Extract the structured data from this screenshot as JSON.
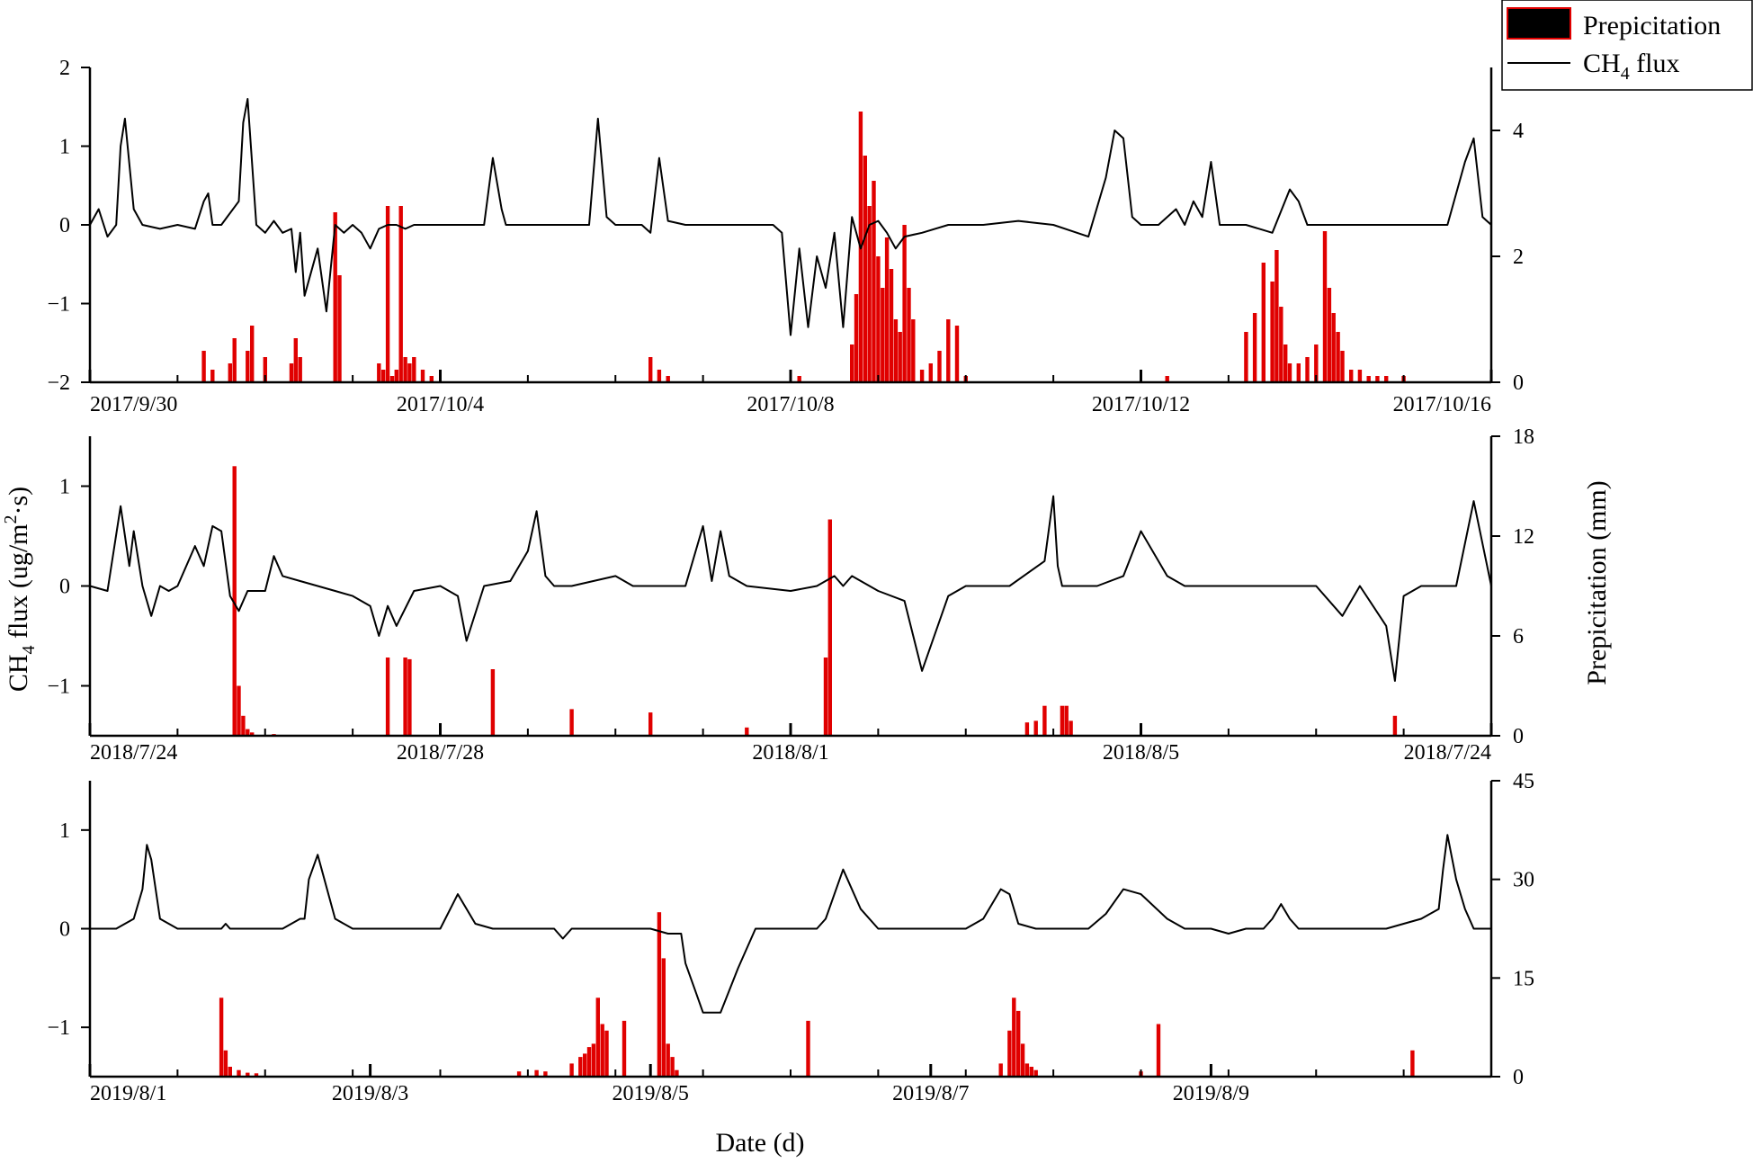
{
  "chart_data": [
    {
      "type": "line",
      "panel": "2017",
      "x_ticks": [
        "2017/9/30",
        "2017/10/4",
        "2017/10/8",
        "2017/10/12",
        "2017/10/16"
      ],
      "left_axis": {
        "ticks": [
          "2",
          "1",
          "0",
          "−1",
          "−2"
        ],
        "ylim": [
          -2,
          2
        ]
      },
      "right_axis": {
        "ticks": [
          "4",
          "2",
          "0"
        ],
        "ylim": [
          0,
          5
        ]
      },
      "series": [
        {
          "name": "CH4 flux",
          "type": "line",
          "axis": "left",
          "color": "#000000",
          "x": [
            0,
            0.1,
            0.2,
            0.3,
            0.35,
            0.4,
            0.5,
            0.6,
            0.8,
            1.0,
            1.2,
            1.3,
            1.35,
            1.4,
            1.5,
            1.7,
            1.75,
            1.8,
            1.9,
            2.0,
            2.1,
            2.2,
            2.3,
            2.35,
            2.4,
            2.45,
            2.6,
            2.7,
            2.8,
            2.9,
            3.0,
            3.1,
            3.2,
            3.3,
            3.4,
            3.5,
            3.6,
            3.7,
            3.9,
            4.2,
            4.5,
            4.6,
            4.7,
            4.75,
            4.8,
            4.9,
            5.0,
            5.2,
            5.5,
            5.7,
            5.8,
            5.9,
            6.0,
            6.2,
            6.3,
            6.4,
            6.5,
            6.6,
            6.8,
            7.0,
            7.5,
            7.8,
            7.9,
            8.0,
            8.1,
            8.2,
            8.3,
            8.4,
            8.5,
            8.6,
            8.7,
            8.8,
            8.9,
            9.0,
            9.1,
            9.2,
            9.3,
            9.5,
            9.8,
            10.2,
            10.6,
            11.0,
            11.4,
            11.6,
            11.7,
            11.8,
            11.9,
            12.0,
            12.2,
            12.4,
            12.5,
            12.6,
            12.7,
            12.8,
            12.9,
            13.0,
            13.2,
            13.5,
            13.7,
            13.8,
            13.9,
            14.0,
            14.2,
            14.5,
            14.8,
            15.0,
            15.2,
            15.5,
            15.7,
            15.8,
            15.9,
            16.0
          ],
          "values": [
            0.0,
            0.2,
            -0.15,
            0.0,
            1.0,
            1.35,
            0.2,
            0.0,
            -0.05,
            0.0,
            -0.05,
            0.3,
            0.4,
            0.0,
            0.0,
            0.3,
            1.3,
            1.6,
            0.0,
            -0.1,
            0.05,
            -0.1,
            -0.05,
            -0.6,
            -0.1,
            -0.9,
            -0.3,
            -1.1,
            0.0,
            -0.1,
            0.0,
            -0.1,
            -0.3,
            -0.05,
            0.0,
            0.0,
            -0.05,
            0.0,
            0.0,
            0.0,
            0.0,
            0.85,
            0.2,
            0.0,
            0.0,
            0.0,
            0.0,
            0.0,
            0.0,
            0.0,
            1.35,
            0.1,
            0.0,
            0.0,
            0.0,
            -0.1,
            0.85,
            0.05,
            0.0,
            0.0,
            0.0,
            0.0,
            -0.1,
            -1.4,
            -0.3,
            -1.3,
            -0.4,
            -0.8,
            -0.1,
            -1.3,
            0.1,
            -0.3,
            0.0,
            0.05,
            -0.1,
            -0.3,
            -0.15,
            -0.1,
            0.0,
            0.0,
            0.05,
            0.0,
            -0.15,
            0.6,
            1.2,
            1.1,
            0.1,
            0.0,
            0.0,
            0.2,
            0.0,
            0.3,
            0.1,
            0.8,
            0.0,
            0.0,
            0.0,
            -0.1,
            0.45,
            0.3,
            0.0,
            0.0,
            0.0,
            0.0,
            0.0,
            0.0,
            0.0,
            0.0,
            0.8,
            1.1,
            0.1,
            0.0
          ]
        },
        {
          "name": "Prepicitation",
          "type": "bar",
          "axis": "right",
          "color": "#e00000",
          "x": [
            1.3,
            1.4,
            1.6,
            1.65,
            1.8,
            1.85,
            2.0,
            2.3,
            2.35,
            2.4,
            2.8,
            2.85,
            3.3,
            3.35,
            3.4,
            3.45,
            3.5,
            3.55,
            3.6,
            3.65,
            3.7,
            3.8,
            3.9,
            6.4,
            6.5,
            6.6,
            8.1,
            8.7,
            8.75,
            8.8,
            8.85,
            8.9,
            8.95,
            9.0,
            9.05,
            9.1,
            9.15,
            9.2,
            9.25,
            9.3,
            9.35,
            9.4,
            9.5,
            9.6,
            9.7,
            9.8,
            9.9,
            10.0,
            12.3,
            13.2,
            13.3,
            13.4,
            13.5,
            13.55,
            13.6,
            13.65,
            13.7,
            13.8,
            13.9,
            14.0,
            14.1,
            14.15,
            14.2,
            14.25,
            14.3,
            14.4,
            14.5,
            14.6,
            14.7,
            14.8,
            15.0
          ],
          "values": [
            0.5,
            0.2,
            0.3,
            0.7,
            0.5,
            0.9,
            0.4,
            0.3,
            0.7,
            0.4,
            2.7,
            1.7,
            0.3,
            0.2,
            2.8,
            0.1,
            0.2,
            2.8,
            0.4,
            0.3,
            0.4,
            0.2,
            0.1,
            0.4,
            0.2,
            0.1,
            0.1,
            0.6,
            1.4,
            4.3,
            3.6,
            2.8,
            3.2,
            2.0,
            1.5,
            2.3,
            1.8,
            1.0,
            0.8,
            2.5,
            1.5,
            1.0,
            0.2,
            0.3,
            0.5,
            1.0,
            0.9,
            0.1,
            0.1,
            0.8,
            1.1,
            1.9,
            1.6,
            2.1,
            1.2,
            0.6,
            0.3,
            0.3,
            0.4,
            0.6,
            2.4,
            1.5,
            1.1,
            0.8,
            0.5,
            0.2,
            0.2,
            0.1,
            0.1,
            0.1,
            0.1
          ]
        }
      ]
    },
    {
      "type": "line",
      "panel": "2018",
      "x_ticks": [
        "2018/7/24",
        "2018/7/28",
        "2018/8/1",
        "2018/8/5",
        "2018/7/24"
      ],
      "left_axis": {
        "ticks": [
          "1",
          "0",
          "−1"
        ],
        "ylim": [
          -1.5,
          1.5
        ]
      },
      "right_axis": {
        "ticks": [
          "18",
          "12",
          "6",
          "0"
        ],
        "ylim": [
          0,
          18
        ]
      },
      "series": [
        {
          "name": "CH4 flux",
          "type": "line",
          "axis": "left",
          "color": "#000000",
          "x": [
            0,
            0.2,
            0.35,
            0.45,
            0.5,
            0.6,
            0.7,
            0.8,
            0.9,
            1.0,
            1.2,
            1.3,
            1.4,
            1.5,
            1.6,
            1.7,
            1.8,
            2.0,
            2.1,
            2.2,
            2.4,
            2.6,
            2.8,
            3.0,
            3.2,
            3.3,
            3.4,
            3.5,
            3.7,
            4.0,
            4.2,
            4.3,
            4.5,
            4.8,
            5.0,
            5.1,
            5.2,
            5.3,
            5.5,
            6.0,
            6.2,
            6.5,
            6.8,
            7.0,
            7.1,
            7.2,
            7.3,
            7.5,
            8.0,
            8.3,
            8.5,
            8.6,
            8.7,
            9.0,
            9.3,
            9.5,
            9.8,
            10.0,
            10.1,
            10.15,
            10.2,
            10.3,
            10.5,
            10.9,
            11.0,
            11.05,
            11.1,
            11.3,
            11.5,
            11.8,
            12.0,
            12.3,
            12.5,
            13.0,
            13.5,
            14.0,
            14.3,
            14.5,
            14.8,
            14.9,
            15.0,
            15.2,
            15.4,
            15.6,
            15.8,
            16.0
          ],
          "values": [
            0.0,
            -0.05,
            0.8,
            0.2,
            0.55,
            0.0,
            -0.3,
            0.0,
            -0.05,
            0.0,
            0.4,
            0.2,
            0.6,
            0.55,
            -0.1,
            -0.25,
            -0.05,
            -0.05,
            0.3,
            0.1,
            0.05,
            0.0,
            -0.05,
            -0.1,
            -0.2,
            -0.5,
            -0.2,
            -0.4,
            -0.05,
            0.0,
            -0.1,
            -0.55,
            0.0,
            0.05,
            0.35,
            0.75,
            0.1,
            0.0,
            0.0,
            0.1,
            0.0,
            0.0,
            0.0,
            0.6,
            0.05,
            0.55,
            0.1,
            0.0,
            -0.05,
            0.0,
            0.1,
            0.0,
            0.1,
            -0.05,
            -0.15,
            -0.85,
            -0.1,
            0.0,
            0.0,
            0.0,
            0.0,
            0.0,
            0.0,
            0.25,
            0.9,
            0.2,
            0.0,
            0.0,
            0.0,
            0.1,
            0.55,
            0.1,
            0.0,
            0.0,
            0.0,
            0.0,
            -0.3,
            0.0,
            -0.4,
            -0.95,
            -0.1,
            0.0,
            0.0,
            0.0,
            0.85,
            0.0
          ]
        },
        {
          "name": "Prepicitation",
          "type": "bar",
          "axis": "right",
          "color": "#e00000",
          "x": [
            1.65,
            1.7,
            1.75,
            1.8,
            1.85,
            2.1,
            3.4,
            3.6,
            3.65,
            4.6,
            5.5,
            6.4,
            7.5,
            8.4,
            8.45,
            10.7,
            10.8,
            10.9,
            11.1,
            11.15,
            11.2,
            14.9
          ],
          "values": [
            16.2,
            3.0,
            1.2,
            0.4,
            0.2,
            0.1,
            4.7,
            4.7,
            4.6,
            4.0,
            1.6,
            1.4,
            0.5,
            4.7,
            13.0,
            0.8,
            0.9,
            1.8,
            1.8,
            1.8,
            0.9,
            1.2
          ]
        }
      ]
    },
    {
      "type": "line",
      "panel": "2019",
      "x_ticks": [
        "2019/8/1",
        "2019/8/3",
        "2019/8/5",
        "2019/8/7",
        "2019/8/9"
      ],
      "left_axis": {
        "ticks": [
          "1",
          "0",
          "−1"
        ],
        "ylim": [
          -1.5,
          1.5
        ]
      },
      "right_axis": {
        "ticks": [
          "45",
          "30",
          "15",
          "0"
        ],
        "ylim": [
          0,
          45
        ]
      },
      "series": [
        {
          "name": "CH4 flux",
          "type": "line",
          "axis": "left",
          "color": "#000000",
          "x": [
            0,
            0.3,
            0.5,
            0.6,
            0.65,
            0.7,
            0.8,
            1.0,
            1.3,
            1.4,
            1.5,
            1.55,
            1.6,
            1.7,
            1.9,
            2.2,
            2.4,
            2.45,
            2.5,
            2.6,
            2.8,
            3.0,
            3.3,
            3.4,
            3.6,
            3.7,
            4.0,
            4.2,
            4.4,
            4.6,
            4.8,
            5.0,
            5.2,
            5.3,
            5.4,
            5.5,
            5.6,
            5.7,
            5.8,
            6.0,
            6.4,
            6.6,
            6.75,
            6.8,
            6.9,
            7.0,
            7.2,
            7.4,
            7.6,
            7.7,
            7.8,
            8.0,
            8.3,
            8.4,
            8.5,
            8.6,
            8.8,
            9.0,
            9.2,
            9.3,
            9.4,
            9.6,
            9.8,
            10.0,
            10.2,
            10.4,
            10.5,
            10.6,
            10.8,
            11.0,
            11.1,
            11.2,
            11.4,
            11.6,
            11.8,
            12.0,
            12.3,
            12.5,
            12.6,
            12.8,
            13.0,
            13.2,
            13.3,
            13.4,
            13.5,
            13.6,
            13.7,
            13.8,
            14.0,
            14.2,
            14.4,
            14.6,
            14.8,
            15.0,
            15.2,
            15.4,
            15.45,
            15.5,
            15.6,
            15.7,
            15.8,
            16.0
          ],
          "values": [
            0.0,
            0.0,
            0.1,
            0.4,
            0.85,
            0.7,
            0.1,
            0.0,
            0.0,
            0.0,
            0.0,
            0.05,
            0.0,
            0.0,
            0.0,
            0.0,
            0.1,
            0.1,
            0.5,
            0.75,
            0.1,
            0.0,
            0.0,
            0.0,
            0.0,
            0.0,
            0.0,
            0.35,
            0.05,
            0.0,
            0.0,
            0.0,
            0.0,
            0.0,
            -0.1,
            0.0,
            0.0,
            0.0,
            0.0,
            0.0,
            0.0,
            -0.05,
            -0.05,
            -0.35,
            -0.6,
            -0.85,
            -0.85,
            -0.4,
            0.0,
            0.0,
            0.0,
            0.0,
            0.0,
            0.1,
            0.35,
            0.6,
            0.2,
            0.0,
            0.0,
            0.0,
            0.0,
            0.0,
            0.0,
            0.0,
            0.1,
            0.4,
            0.35,
            0.05,
            0.0,
            0.0,
            0.0,
            0.0,
            0.0,
            0.15,
            0.4,
            0.35,
            0.1,
            0.0,
            0.0,
            0.0,
            -0.05,
            0.0,
            0.0,
            0.0,
            0.1,
            0.25,
            0.1,
            0.0,
            0.0,
            0.0,
            0.0,
            0.0,
            0.0,
            0.05,
            0.1,
            0.2,
            0.6,
            0.95,
            0.5,
            0.2,
            0.0,
            0.0
          ]
        },
        {
          "name": "Prepicitation",
          "type": "bar",
          "axis": "right",
          "color": "#e00000",
          "x": [
            1.5,
            1.55,
            1.6,
            1.7,
            1.8,
            1.9,
            4.9,
            5.1,
            5.2,
            5.5,
            5.6,
            5.65,
            5.7,
            5.75,
            5.8,
            5.85,
            5.9,
            6.1,
            6.5,
            6.55,
            6.6,
            6.65,
            6.7,
            8.2,
            10.4,
            10.5,
            10.55,
            10.6,
            10.65,
            10.7,
            10.75,
            10.8,
            12.0,
            12.2,
            15.1
          ],
          "values": [
            12.0,
            4.0,
            1.5,
            1.0,
            0.6,
            0.5,
            0.8,
            1.0,
            0.8,
            2.0,
            3.0,
            3.5,
            4.5,
            5.0,
            12.0,
            8.0,
            7.0,
            8.5,
            25.0,
            18.0,
            5.0,
            3.0,
            1.0,
            8.5,
            2.0,
            7.0,
            12.0,
            10.0,
            5.0,
            2.0,
            1.5,
            1.0,
            0.8,
            8.0,
            4.0
          ]
        }
      ]
    }
  ],
  "legend": {
    "items": [
      {
        "label": "Prepicitation",
        "swatch": "filled-box",
        "fill": "#000000",
        "stroke": "#e00000"
      },
      {
        "label_main": "CH",
        "label_sub": "4",
        "label_rest": " flux",
        "swatch": "line",
        "color": "#000000"
      }
    ]
  },
  "axis_titles": {
    "left_main": "CH",
    "left_sub": "4",
    "left_mid": " flux  (ug/m",
    "left_sup": "2",
    "left_end": "·s)",
    "right": "Prepicitation (mm)",
    "bottom": "Date (d)"
  }
}
